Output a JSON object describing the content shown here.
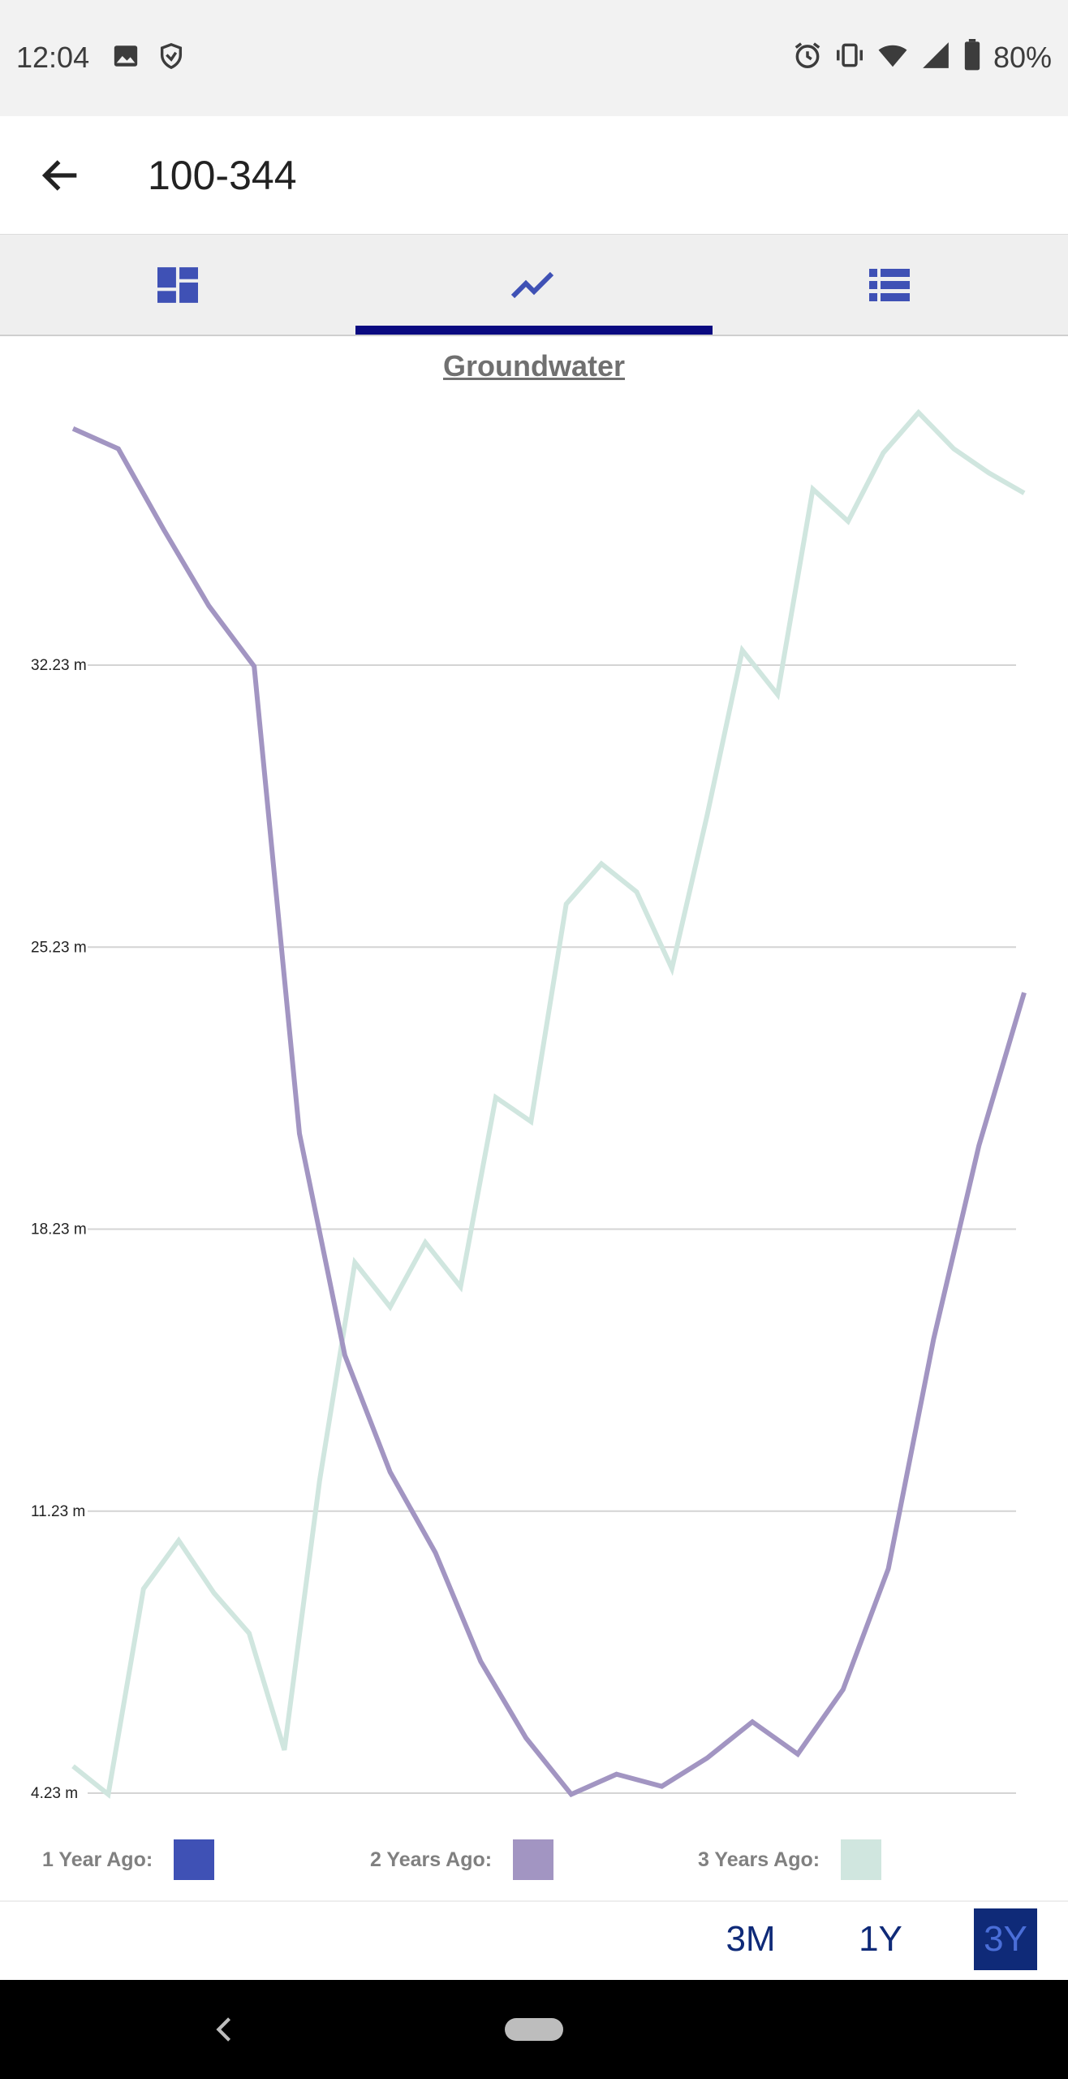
{
  "status_bar": {
    "time": "12:04",
    "battery": "80%",
    "icons": [
      "image-icon",
      "shield-icon",
      "alarm-icon",
      "vibrate-icon",
      "wifi-icon",
      "signal-icon",
      "battery-icon"
    ]
  },
  "app_bar": {
    "title": "100-344",
    "back_icon": "arrow-left-icon"
  },
  "tabs": [
    {
      "name": "dashboard",
      "icon": "dashboard-icon",
      "selected": false
    },
    {
      "name": "chart",
      "icon": "trending-line-icon",
      "selected": true
    },
    {
      "name": "list",
      "icon": "list-icon",
      "selected": false
    }
  ],
  "chart_data": {
    "type": "line",
    "title": "Groundwater",
    "xlabel": "",
    "ylabel": "",
    "y_ticks": [
      "32.23 m",
      "25.23 m",
      "18.23 m",
      "11.23 m",
      "4.23 m"
    ],
    "y_tick_values": [
      32.23,
      25.23,
      18.23,
      11.23,
      4.23
    ],
    "ylim": [
      4.23,
      38.5
    ],
    "grid": true,
    "legend_position": "bottom",
    "series": [
      {
        "name": "1 Year Ago:",
        "color": "#3f51b5",
        "values": []
      },
      {
        "name": "2 Years Ago:",
        "color": "#a295c2",
        "values": [
          38.1,
          37.6,
          35.6,
          33.7,
          32.2,
          20.6,
          15.1,
          12.2,
          10.2,
          7.5,
          5.6,
          4.2,
          4.7,
          4.4,
          5.1,
          6.0,
          5.2,
          6.8,
          9.8,
          15.5,
          20.3,
          24.1
        ]
      },
      {
        "name": "3 Years Ago:",
        "color": "#d0e6df",
        "values": [
          4.9,
          4.2,
          9.3,
          10.5,
          9.2,
          8.2,
          5.3,
          12.0,
          17.4,
          16.3,
          17.9,
          16.8,
          21.5,
          20.9,
          26.3,
          27.3,
          26.6,
          24.7,
          28.5,
          32.6,
          31.5,
          36.6,
          35.8,
          37.5,
          38.5,
          37.6,
          37.0,
          36.5
        ]
      }
    ]
  },
  "range_selector": {
    "options": [
      "3M",
      "1Y",
      "3Y"
    ],
    "selected": "3Y"
  },
  "nav_bar": {
    "back_icon": "nav-back-icon",
    "home_icon": "home-pill-icon"
  }
}
